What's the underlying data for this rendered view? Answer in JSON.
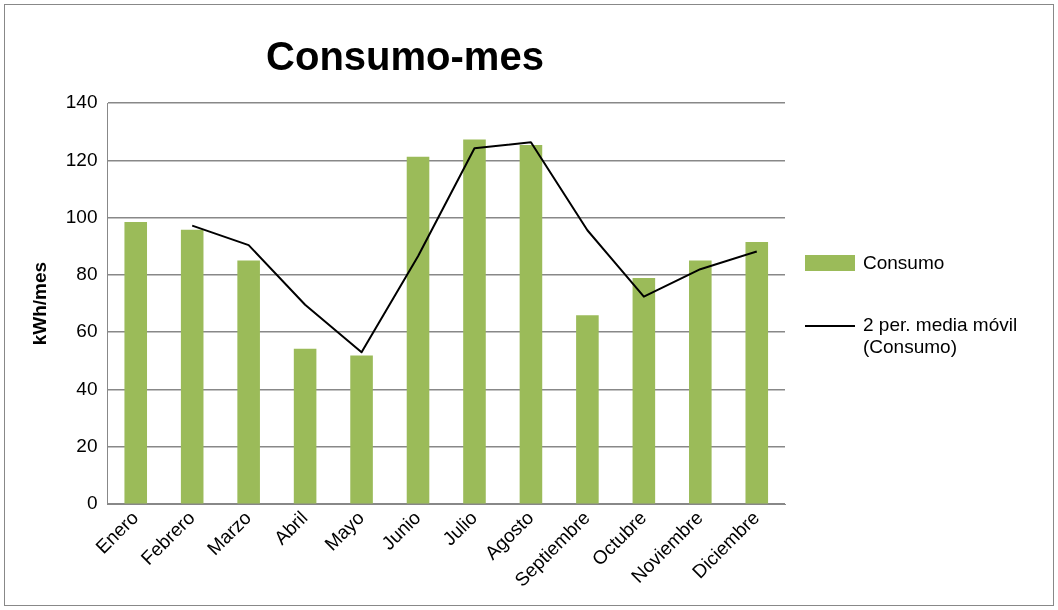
{
  "chart_data": {
    "type": "bar",
    "title": "Consumo-mes",
    "ylabel": "kWh/mes",
    "categories": [
      "Enero",
      "Febrero",
      "Marzo",
      "Abril",
      "Mayo",
      "Junio",
      "Julio",
      "Agosto",
      "Septiembre",
      "Octubre",
      "Noviembre",
      "Diciembre"
    ],
    "series": [
      {
        "name": "Consumo",
        "color": "#9bbb59",
        "values": [
          98.5,
          95.8,
          85,
          54.2,
          51.9,
          121.2,
          127.3,
          125.3,
          65.9,
          78.9,
          85,
          91.5
        ]
      },
      {
        "name": "2 per. media móvil (Consumo)",
        "type": "line",
        "color": "#000000",
        "values": [
          null,
          97.2,
          90.4,
          69.6,
          53,
          86.5,
          124.2,
          126.3,
          95.6,
          72.4,
          82,
          88.2
        ]
      }
    ],
    "ylim": [
      0,
      140
    ],
    "yticks": [
      0,
      20,
      40,
      60,
      80,
      100,
      120,
      140
    ],
    "grid": "y",
    "legend": "right",
    "marker": "none"
  }
}
